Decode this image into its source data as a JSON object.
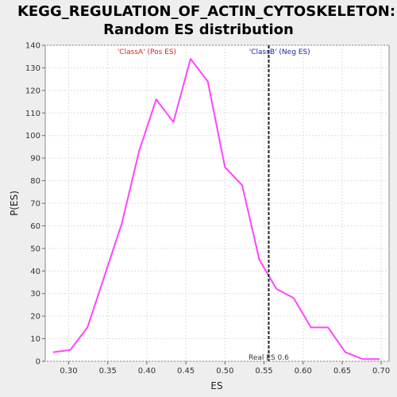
{
  "chart_data": {
    "type": "line",
    "title_line1": "KEGG_REGULATION_OF_ACTIN_CYTOSKELETON:",
    "title_line2": "Random ES distribution",
    "xlabel": "ES",
    "ylabel": "P(ES)",
    "xlim": [
      0.27,
      0.71
    ],
    "ylim": [
      0,
      140
    ],
    "xticks": [
      0.3,
      0.35,
      0.4,
      0.45,
      0.5,
      0.55,
      0.6,
      0.65,
      0.7
    ],
    "xtick_labels": [
      "0.30",
      "0.35",
      "0.40",
      "0.45",
      "0.50",
      "0.55",
      "0.60",
      "0.65",
      "0.70"
    ],
    "yticks": [
      0,
      10,
      20,
      30,
      40,
      50,
      60,
      70,
      80,
      90,
      100,
      110,
      120,
      130,
      140
    ],
    "ytick_labels": [
      "0",
      "10",
      "20",
      "30",
      "40",
      "50",
      "60",
      "70",
      "80",
      "90",
      "100",
      "110",
      "120",
      "130",
      "140"
    ],
    "grid": true,
    "series": [
      {
        "color": "#ff44ff",
        "x": [
          0.28,
          0.302,
          0.324,
          0.346,
          0.368,
          0.39,
          0.412,
          0.434,
          0.456,
          0.478,
          0.5,
          0.522,
          0.544,
          0.566,
          0.588,
          0.61,
          0.632,
          0.654,
          0.676,
          0.698
        ],
        "y": [
          4,
          5,
          15,
          38,
          61,
          93,
          116,
          106,
          134,
          124,
          86,
          78,
          45,
          32,
          28,
          15,
          15,
          4,
          1,
          1
        ]
      }
    ],
    "real_es": {
      "value": 0.556,
      "label": "Real ES 0.6",
      "color": "#222222"
    },
    "annotations": [
      {
        "text": "'ClassA' (Pos ES)",
        "color": "#dd2222",
        "x": 0.4
      },
      {
        "text": "'ClassB' (Neg ES)",
        "color": "#2222aa",
        "x": 0.57
      }
    ]
  }
}
